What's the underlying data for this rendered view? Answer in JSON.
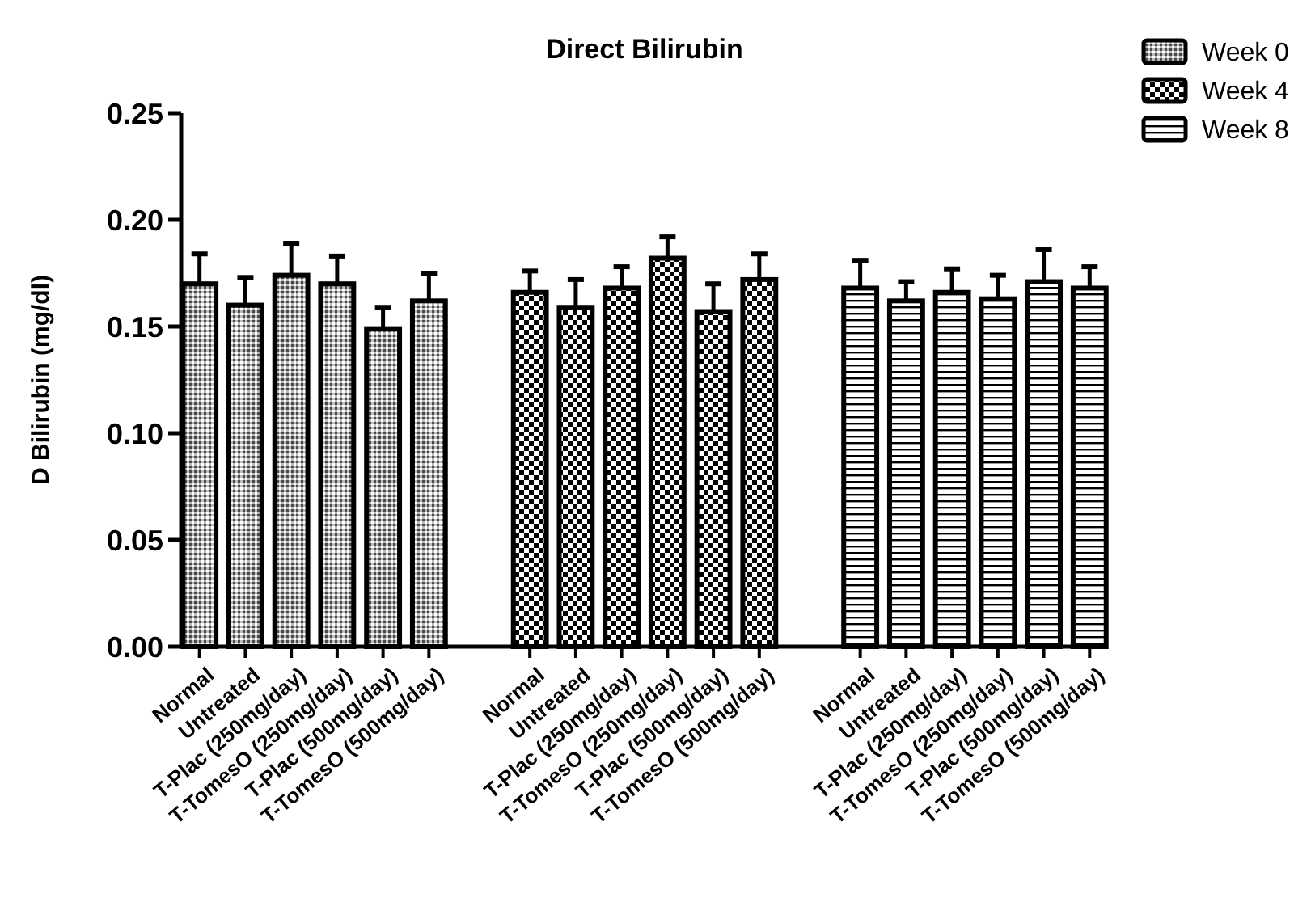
{
  "chart_data": {
    "type": "bar",
    "title": "Direct Bilirubin",
    "ylabel": "D Bilirubin (mg/dl)",
    "categories": [
      "Normal",
      "Untreated",
      "T-Plac (250mg/day)",
      "T-TomesO (250mg/day)",
      "T-Plac (500mg/day)",
      "T-TomesO (500mg/day)",
      "Normal",
      "Untreated",
      "T-Plac (250mg/day)",
      "T-TomesO (250mg/day)",
      "T-Plac (500mg/day)",
      "T-TomesO (500mg/day)",
      "Normal",
      "Untreated",
      "T-Plac (250mg/day)",
      "T-TomesO (250mg/day)",
      "T-Plac (500mg/day)",
      "T-TomesO (500mg/day)"
    ],
    "series": [
      {
        "name": "Week 0",
        "color": "#000000",
        "values": [
          0.17,
          0.16,
          0.174,
          0.17,
          0.149,
          0.162,
          null,
          null,
          null,
          null,
          null,
          null,
          null,
          null,
          null,
          null,
          null,
          null
        ],
        "errors": [
          0.014,
          0.013,
          0.015,
          0.013,
          0.01,
          0.013,
          null,
          null,
          null,
          null,
          null,
          null,
          null,
          null,
          null,
          null,
          null,
          null
        ]
      },
      {
        "name": "Week 4",
        "color": "#000000",
        "values": [
          null,
          null,
          null,
          null,
          null,
          null,
          0.166,
          0.159,
          0.168,
          0.182,
          0.157,
          0.172,
          null,
          null,
          null,
          null,
          null,
          null
        ],
        "errors": [
          null,
          null,
          null,
          null,
          null,
          null,
          0.01,
          0.013,
          0.01,
          0.01,
          0.013,
          0.012,
          null,
          null,
          null,
          null,
          null,
          null
        ]
      },
      {
        "name": "Week 8",
        "color": "#000000",
        "values": [
          null,
          null,
          null,
          null,
          null,
          null,
          null,
          null,
          null,
          null,
          null,
          null,
          0.168,
          0.162,
          0.166,
          0.163,
          0.171,
          0.168
        ],
        "errors": [
          null,
          null,
          null,
          null,
          null,
          null,
          null,
          null,
          null,
          null,
          null,
          null,
          0.013,
          0.009,
          0.011,
          0.011,
          0.015,
          0.01
        ]
      }
    ],
    "ylim": [
      0,
      0.25
    ],
    "yticks": [
      {
        "value": 0,
        "label": "0.00"
      },
      {
        "value": 0.05,
        "label": "0.05"
      },
      {
        "value": 0.1,
        "label": "0.10"
      },
      {
        "value": 0.15,
        "label": "0.15"
      },
      {
        "value": 0.2,
        "label": "0.20"
      },
      {
        "value": 0.25,
        "label": "0.25"
      }
    ],
    "grid": false,
    "legend": "top right"
  }
}
